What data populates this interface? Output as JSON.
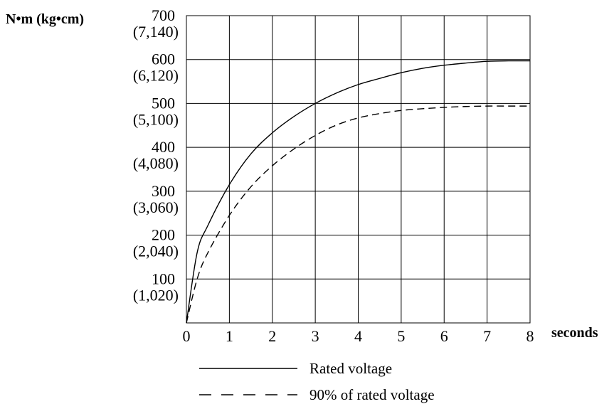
{
  "chart_data": {
    "type": "line",
    "title": "",
    "xlabel": "seconds",
    "ylabel": "N•m (kg•cm)",
    "xlim": [
      0,
      8
    ],
    "ylim": [
      0,
      700
    ],
    "grid": true,
    "legend_position": "bottom",
    "x_ticks": [
      "0",
      "1",
      "2",
      "3",
      "4",
      "5",
      "6",
      "7",
      "8"
    ],
    "y_ticks": [
      {
        "value": 100,
        "label": "100",
        "sublabel": "(1,020)"
      },
      {
        "value": 200,
        "label": "200",
        "sublabel": "(2,040)"
      },
      {
        "value": 300,
        "label": "300",
        "sublabel": "(3,060)"
      },
      {
        "value": 400,
        "label": "400",
        "sublabel": "(4,080)"
      },
      {
        "value": 500,
        "label": "500",
        "sublabel": "(5,100)"
      },
      {
        "value": 600,
        "label": "600",
        "sublabel": "(6,120)"
      },
      {
        "value": 700,
        "label": "700",
        "sublabel": "(7,140)"
      }
    ],
    "x": [
      0,
      0.25,
      0.5,
      1,
      1.5,
      2,
      2.5,
      3,
      3.5,
      4,
      4.5,
      5,
      5.5,
      6,
      6.5,
      7,
      7.5,
      8
    ],
    "series": [
      {
        "name": "Rated voltage",
        "style": "solid",
        "color": "#000000",
        "values": [
          0,
          160,
          222,
          315,
          385,
          433,
          470,
          500,
          524,
          543,
          557,
          570,
          580,
          587,
          592,
          596,
          597,
          597
        ]
      },
      {
        "name": "90% of rated voltage",
        "style": "dashed",
        "color": "#000000",
        "values": [
          0,
          100,
          160,
          245,
          310,
          358,
          396,
          427,
          451,
          467,
          477,
          484,
          488,
          491,
          493,
          494,
          494,
          494
        ]
      }
    ]
  }
}
